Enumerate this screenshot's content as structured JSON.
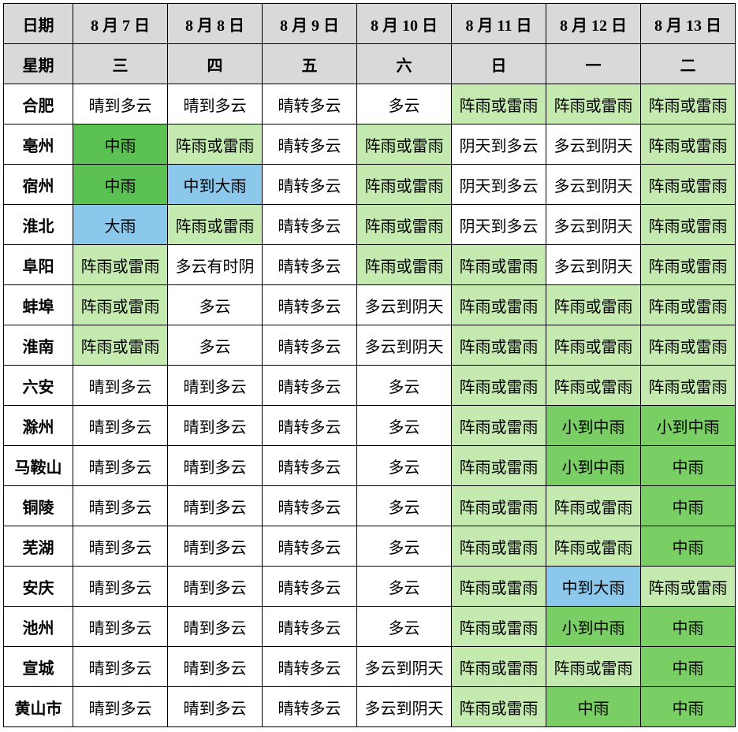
{
  "colors": {
    "header_bg": "#d9d9d9",
    "white": "#ffffff",
    "light_green": "#c4eab0",
    "mid_green": "#7acf64",
    "dark_green": "#5bc152",
    "blue": "#8cc8ec",
    "border": "#000000"
  },
  "header_rows": [
    {
      "label": "日期",
      "cells": [
        "8 月 7 日",
        "8 月 8 日",
        "8 月 9 日",
        "8 月 10 日",
        "8 月 11 日",
        "8 月 12 日",
        "8 月 13 日"
      ]
    },
    {
      "label": "星期",
      "cells": [
        "三",
        "四",
        "五",
        "六",
        "日",
        "一",
        "二"
      ]
    }
  ],
  "cities": [
    {
      "name": "合肥",
      "cells": [
        {
          "t": "晴到多云",
          "c": "white"
        },
        {
          "t": "晴到多云",
          "c": "white"
        },
        {
          "t": "晴转多云",
          "c": "white"
        },
        {
          "t": "多云",
          "c": "white"
        },
        {
          "t": "阵雨或雷雨",
          "c": "light_green"
        },
        {
          "t": "阵雨或雷雨",
          "c": "light_green"
        },
        {
          "t": "阵雨或雷雨",
          "c": "light_green"
        }
      ]
    },
    {
      "name": "亳州",
      "cells": [
        {
          "t": "中雨",
          "c": "dark_green"
        },
        {
          "t": "阵雨或雷雨",
          "c": "light_green"
        },
        {
          "t": "晴转多云",
          "c": "white"
        },
        {
          "t": "阵雨或雷雨",
          "c": "light_green"
        },
        {
          "t": "阴天到多云",
          "c": "white"
        },
        {
          "t": "多云到阴天",
          "c": "white"
        },
        {
          "t": "阵雨或雷雨",
          "c": "light_green"
        }
      ]
    },
    {
      "name": "宿州",
      "cells": [
        {
          "t": "中雨",
          "c": "dark_green"
        },
        {
          "t": "中到大雨",
          "c": "blue"
        },
        {
          "t": "晴转多云",
          "c": "white"
        },
        {
          "t": "阵雨或雷雨",
          "c": "light_green"
        },
        {
          "t": "阴天到多云",
          "c": "white"
        },
        {
          "t": "多云到阴天",
          "c": "white"
        },
        {
          "t": "阵雨或雷雨",
          "c": "light_green"
        }
      ]
    },
    {
      "name": "淮北",
      "cells": [
        {
          "t": "大雨",
          "c": "blue"
        },
        {
          "t": "阵雨或雷雨",
          "c": "light_green"
        },
        {
          "t": "晴转多云",
          "c": "white"
        },
        {
          "t": "阵雨或雷雨",
          "c": "light_green"
        },
        {
          "t": "阴天到多云",
          "c": "white"
        },
        {
          "t": "多云到阴天",
          "c": "white"
        },
        {
          "t": "阵雨或雷雨",
          "c": "light_green"
        }
      ]
    },
    {
      "name": "阜阳",
      "cells": [
        {
          "t": "阵雨或雷雨",
          "c": "light_green"
        },
        {
          "t": "多云有时阴",
          "c": "white"
        },
        {
          "t": "晴转多云",
          "c": "white"
        },
        {
          "t": "阵雨或雷雨",
          "c": "light_green"
        },
        {
          "t": "阵雨或雷雨",
          "c": "light_green"
        },
        {
          "t": "多云到阴天",
          "c": "white"
        },
        {
          "t": "阵雨或雷雨",
          "c": "light_green"
        }
      ]
    },
    {
      "name": "蚌埠",
      "cells": [
        {
          "t": "阵雨或雷雨",
          "c": "light_green"
        },
        {
          "t": "多云",
          "c": "white"
        },
        {
          "t": "晴转多云",
          "c": "white"
        },
        {
          "t": "多云到阴天",
          "c": "white"
        },
        {
          "t": "阵雨或雷雨",
          "c": "light_green"
        },
        {
          "t": "阵雨或雷雨",
          "c": "light_green"
        },
        {
          "t": "阵雨或雷雨",
          "c": "light_green"
        }
      ]
    },
    {
      "name": "淮南",
      "cells": [
        {
          "t": "阵雨或雷雨",
          "c": "light_green"
        },
        {
          "t": "多云",
          "c": "white"
        },
        {
          "t": "晴转多云",
          "c": "white"
        },
        {
          "t": "多云到阴天",
          "c": "white"
        },
        {
          "t": "阵雨或雷雨",
          "c": "light_green"
        },
        {
          "t": "阵雨或雷雨",
          "c": "light_green"
        },
        {
          "t": "阵雨或雷雨",
          "c": "light_green"
        }
      ]
    },
    {
      "name": "六安",
      "cells": [
        {
          "t": "晴到多云",
          "c": "white"
        },
        {
          "t": "晴到多云",
          "c": "white"
        },
        {
          "t": "晴转多云",
          "c": "white"
        },
        {
          "t": "多云",
          "c": "white"
        },
        {
          "t": "阵雨或雷雨",
          "c": "light_green"
        },
        {
          "t": "阵雨或雷雨",
          "c": "light_green"
        },
        {
          "t": "阵雨或雷雨",
          "c": "light_green"
        }
      ]
    },
    {
      "name": "滁州",
      "cells": [
        {
          "t": "晴到多云",
          "c": "white"
        },
        {
          "t": "晴到多云",
          "c": "white"
        },
        {
          "t": "晴转多云",
          "c": "white"
        },
        {
          "t": "多云",
          "c": "white"
        },
        {
          "t": "阵雨或雷雨",
          "c": "light_green"
        },
        {
          "t": "小到中雨",
          "c": "mid_green"
        },
        {
          "t": "小到中雨",
          "c": "mid_green"
        }
      ]
    },
    {
      "name": "马鞍山",
      "cells": [
        {
          "t": "晴到多云",
          "c": "white"
        },
        {
          "t": "晴到多云",
          "c": "white"
        },
        {
          "t": "晴转多云",
          "c": "white"
        },
        {
          "t": "多云",
          "c": "white"
        },
        {
          "t": "阵雨或雷雨",
          "c": "light_green"
        },
        {
          "t": "小到中雨",
          "c": "mid_green"
        },
        {
          "t": "中雨",
          "c": "mid_green"
        }
      ]
    },
    {
      "name": "铜陵",
      "cells": [
        {
          "t": "晴到多云",
          "c": "white"
        },
        {
          "t": "晴到多云",
          "c": "white"
        },
        {
          "t": "晴转多云",
          "c": "white"
        },
        {
          "t": "多云",
          "c": "white"
        },
        {
          "t": "阵雨或雷雨",
          "c": "light_green"
        },
        {
          "t": "阵雨或雷雨",
          "c": "light_green"
        },
        {
          "t": "中雨",
          "c": "mid_green"
        }
      ]
    },
    {
      "name": "芜湖",
      "cells": [
        {
          "t": "晴到多云",
          "c": "white"
        },
        {
          "t": "晴到多云",
          "c": "white"
        },
        {
          "t": "晴转多云",
          "c": "white"
        },
        {
          "t": "多云",
          "c": "white"
        },
        {
          "t": "阵雨或雷雨",
          "c": "light_green"
        },
        {
          "t": "阵雨或雷雨",
          "c": "light_green"
        },
        {
          "t": "中雨",
          "c": "mid_green"
        }
      ]
    },
    {
      "name": "安庆",
      "cells": [
        {
          "t": "晴到多云",
          "c": "white"
        },
        {
          "t": "晴到多云",
          "c": "white"
        },
        {
          "t": "晴转多云",
          "c": "white"
        },
        {
          "t": "多云",
          "c": "white"
        },
        {
          "t": "阵雨或雷雨",
          "c": "light_green"
        },
        {
          "t": "中到大雨",
          "c": "blue"
        },
        {
          "t": "阵雨或雷雨",
          "c": "light_green"
        }
      ]
    },
    {
      "name": "池州",
      "cells": [
        {
          "t": "晴到多云",
          "c": "white"
        },
        {
          "t": "晴到多云",
          "c": "white"
        },
        {
          "t": "晴转多云",
          "c": "white"
        },
        {
          "t": "多云",
          "c": "white"
        },
        {
          "t": "阵雨或雷雨",
          "c": "light_green"
        },
        {
          "t": "小到中雨",
          "c": "mid_green"
        },
        {
          "t": "中雨",
          "c": "mid_green"
        }
      ]
    },
    {
      "name": "宣城",
      "cells": [
        {
          "t": "晴到多云",
          "c": "white"
        },
        {
          "t": "晴到多云",
          "c": "white"
        },
        {
          "t": "晴转多云",
          "c": "white"
        },
        {
          "t": "多云到阴天",
          "c": "white"
        },
        {
          "t": "阵雨或雷雨",
          "c": "light_green"
        },
        {
          "t": "阵雨或雷雨",
          "c": "light_green"
        },
        {
          "t": "中雨",
          "c": "mid_green"
        }
      ]
    },
    {
      "name": "黄山市",
      "cells": [
        {
          "t": "晴到多云",
          "c": "white"
        },
        {
          "t": "晴到多云",
          "c": "white"
        },
        {
          "t": "晴转多云",
          "c": "white"
        },
        {
          "t": "多云到阴天",
          "c": "white"
        },
        {
          "t": "阵雨或雷雨",
          "c": "light_green"
        },
        {
          "t": "中雨",
          "c": "mid_green"
        },
        {
          "t": "中雨",
          "c": "mid_green"
        }
      ]
    }
  ]
}
